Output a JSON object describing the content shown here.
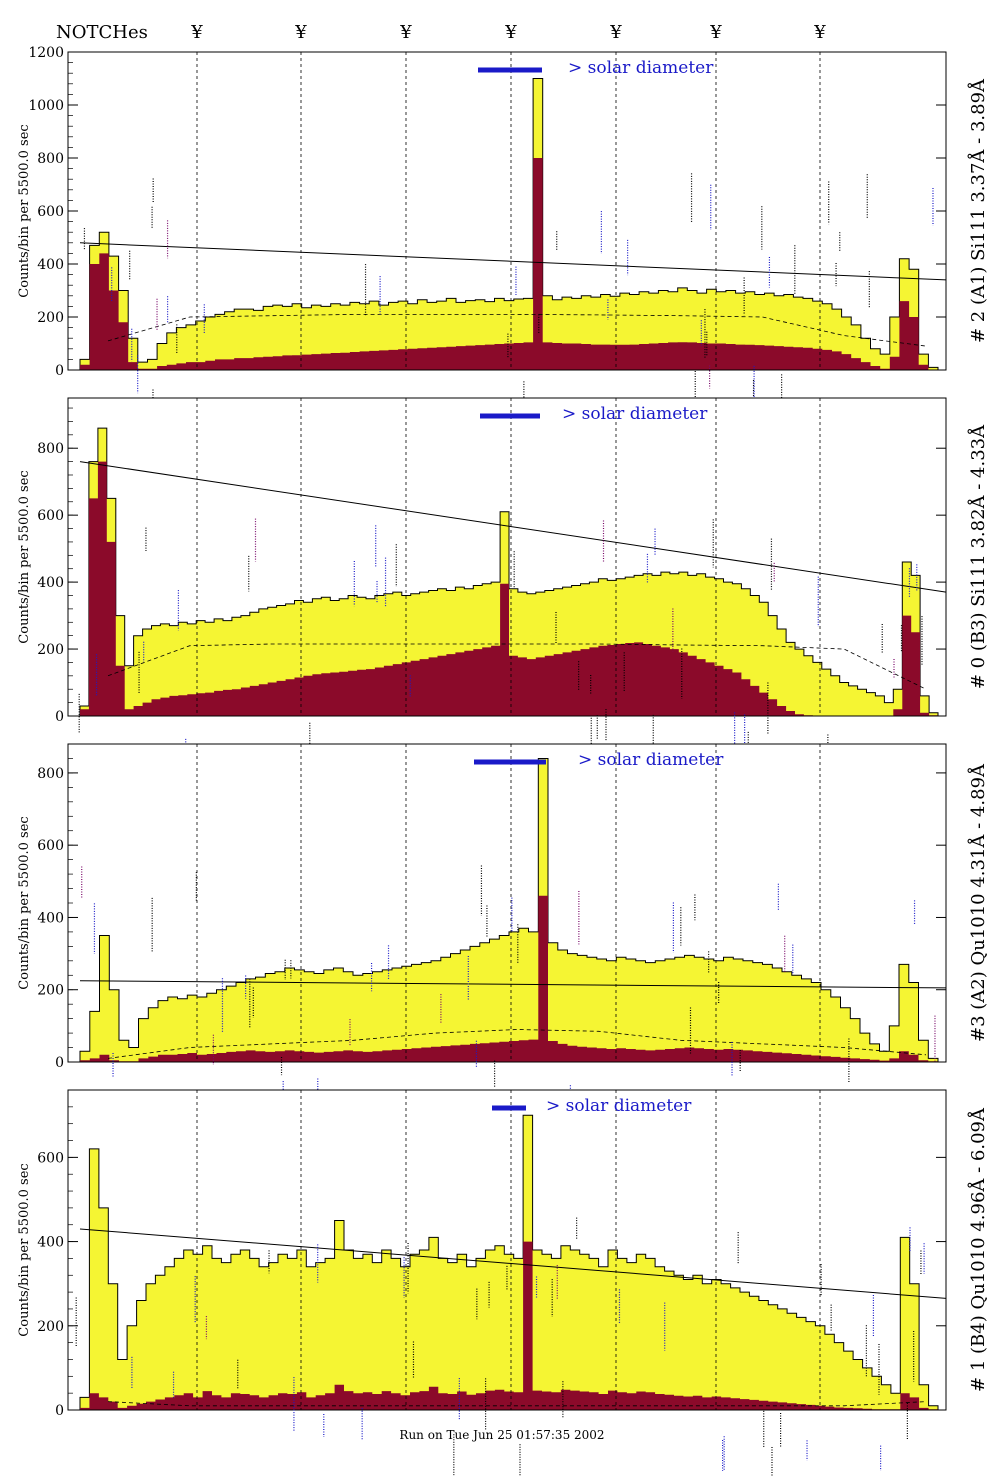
{
  "header": {
    "notches_label": "NOTCHes",
    "notch_symbol": "¥"
  },
  "footer": {
    "run_text": "Run on Tue Jun 25 01:57:35 2002"
  },
  "solar_label": "> solar diameter",
  "colors": {
    "fill_light": "#f5f533",
    "fill_dark": "#8b0a2a",
    "annotation_blue": "#1a1ac8",
    "annotation_purple": "#7a0a6a"
  },
  "chart_data": [
    {
      "type": "bar",
      "title": "# 2 (A1) Si111  3.37Å - 3.89Å",
      "ylabel": "Counts/bin per   5500.0 sec",
      "ylim": [
        0,
        1200
      ],
      "yticks": [
        0,
        200,
        400,
        600,
        800,
        1000,
        1200
      ],
      "notch_x": [
        0.16,
        0.31,
        0.45,
        0.6,
        0.74,
        0.89,
        1.03
      ],
      "series": [
        {
          "name": "total",
          "values": [
            40,
            470,
            520,
            430,
            300,
            120,
            30,
            40,
            100,
            140,
            160,
            170,
            185,
            200,
            210,
            220,
            230,
            230,
            225,
            240,
            245,
            240,
            250,
            235,
            245,
            240,
            250,
            245,
            255,
            250,
            260,
            245,
            255,
            260,
            250,
            265,
            255,
            260,
            270,
            255,
            262,
            265,
            258,
            270,
            262,
            268,
            270,
            1100,
            280,
            265,
            275,
            270,
            280,
            275,
            285,
            278,
            290,
            285,
            295,
            290,
            300,
            295,
            310,
            300,
            290,
            305,
            295,
            300,
            290,
            295,
            285,
            290,
            280,
            285,
            275,
            270,
            260,
            250,
            230,
            200,
            170,
            120,
            80,
            60,
            200,
            420,
            380,
            60,
            10
          ]
        },
        {
          "name": "signal",
          "values": [
            20,
            400,
            440,
            300,
            180,
            30,
            5,
            5,
            15,
            20,
            25,
            30,
            30,
            35,
            40,
            40,
            45,
            45,
            48,
            50,
            52,
            55,
            56,
            58,
            60,
            62,
            64,
            65,
            68,
            70,
            72,
            74,
            76,
            78,
            80,
            82,
            84,
            86,
            88,
            90,
            92,
            94,
            96,
            98,
            100,
            102,
            104,
            800,
            104,
            102,
            100,
            100,
            98,
            96,
            96,
            95,
            95,
            96,
            98,
            100,
            102,
            104,
            105,
            104,
            102,
            100,
            100,
            98,
            96,
            95,
            94,
            92,
            90,
            88,
            86,
            84,
            80,
            76,
            70,
            60,
            45,
            30,
            15,
            5,
            50,
            260,
            200,
            20,
            2
          ]
        }
      ],
      "fit_line": [
        480,
        340
      ],
      "bg_curve": [
        110,
        200,
        205,
        210,
        210,
        210,
        208,
        205,
        200,
        130,
        90
      ]
    },
    {
      "type": "bar",
      "title": "# 0 (B3) Si111  3.82Å - 4.33Å",
      "ylabel": "Counts/bin per   5500.0 sec",
      "ylim": [
        0,
        950
      ],
      "yticks": [
        0,
        200,
        400,
        600,
        800
      ],
      "notch_x": [
        0.16,
        0.31,
        0.45,
        0.6,
        0.74,
        0.89,
        1.03
      ],
      "series": [
        {
          "name": "total",
          "values": [
            30,
            760,
            860,
            650,
            300,
            150,
            240,
            260,
            270,
            275,
            270,
            280,
            275,
            285,
            280,
            290,
            285,
            295,
            300,
            310,
            320,
            325,
            330,
            335,
            345,
            340,
            350,
            355,
            345,
            350,
            360,
            355,
            350,
            360,
            365,
            370,
            360,
            365,
            370,
            375,
            380,
            375,
            385,
            380,
            390,
            395,
            400,
            610,
            380,
            370,
            365,
            370,
            375,
            380,
            385,
            390,
            395,
            400,
            410,
            405,
            410,
            415,
            420,
            425,
            420,
            430,
            425,
            430,
            420,
            425,
            415,
            410,
            400,
            395,
            380,
            360,
            340,
            300,
            260,
            220,
            200,
            180,
            160,
            140,
            120,
            100,
            90,
            80,
            70,
            60,
            40,
            80,
            460,
            420,
            60,
            10
          ]
        },
        {
          "name": "signal",
          "values": [
            20,
            650,
            760,
            520,
            150,
            20,
            30,
            40,
            50,
            55,
            60,
            62,
            65,
            68,
            70,
            75,
            78,
            80,
            85,
            90,
            95,
            100,
            105,
            110,
            115,
            120,
            125,
            128,
            130,
            132,
            135,
            138,
            140,
            145,
            150,
            155,
            160,
            165,
            170,
            175,
            180,
            185,
            190,
            195,
            200,
            205,
            210,
            395,
            180,
            175,
            170,
            175,
            180,
            185,
            190,
            195,
            200,
            205,
            210,
            212,
            215,
            218,
            220,
            215,
            210,
            205,
            200,
            190,
            180,
            170,
            160,
            150,
            140,
            130,
            110,
            90,
            70,
            50,
            30,
            15,
            5,
            2,
            0,
            0,
            0,
            0,
            0,
            0,
            0,
            0,
            0,
            20,
            300,
            250,
            10,
            2
          ]
        }
      ],
      "fit_line": [
        760,
        370
      ],
      "bg_curve": [
        120,
        210,
        215,
        215,
        215,
        215,
        215,
        212,
        210,
        200,
        80
      ]
    },
    {
      "type": "bar",
      "title": "#3 (A2) Qu1010  4.31Å - 4.89Å",
      "ylabel": "Counts/bin per   5500.0 sec",
      "ylim": [
        0,
        880
      ],
      "yticks": [
        0,
        200,
        400,
        600,
        800
      ],
      "notch_x": [
        0.16,
        0.31,
        0.45,
        0.6,
        0.74,
        0.89,
        1.03
      ],
      "series": [
        {
          "name": "total",
          "values": [
            30,
            140,
            350,
            200,
            60,
            40,
            120,
            150,
            170,
            180,
            175,
            185,
            180,
            190,
            200,
            210,
            220,
            230,
            235,
            245,
            250,
            260,
            255,
            250,
            245,
            255,
            260,
            250,
            240,
            245,
            250,
            255,
            260,
            265,
            270,
            275,
            280,
            290,
            300,
            310,
            320,
            330,
            340,
            350,
            360,
            370,
            360,
            840,
            330,
            310,
            300,
            295,
            290,
            285,
            280,
            290,
            285,
            280,
            275,
            280,
            285,
            290,
            295,
            290,
            285,
            280,
            290,
            285,
            280,
            275,
            270,
            260,
            250,
            240,
            230,
            220,
            200,
            180,
            150,
            120,
            80,
            50,
            30,
            100,
            270,
            220,
            60,
            10
          ]
        },
        {
          "name": "signal",
          "values": [
            5,
            10,
            20,
            5,
            2,
            2,
            10,
            15,
            20,
            20,
            22,
            25,
            20,
            22,
            25,
            28,
            30,
            32,
            30,
            28,
            30,
            32,
            30,
            28,
            26,
            28,
            30,
            32,
            30,
            28,
            30,
            32,
            34,
            36,
            38,
            40,
            42,
            44,
            46,
            48,
            50,
            52,
            54,
            56,
            58,
            60,
            62,
            460,
            58,
            50,
            45,
            42,
            40,
            38,
            36,
            38,
            36,
            34,
            32,
            34,
            36,
            38,
            40,
            38,
            36,
            34,
            36,
            34,
            32,
            30,
            28,
            26,
            24,
            22,
            20,
            18,
            16,
            14,
            12,
            10,
            8,
            6,
            4,
            10,
            30,
            20,
            5,
            2
          ]
        }
      ],
      "fit_line": [
        225,
        205
      ],
      "bg_curve": [
        10,
        40,
        50,
        60,
        80,
        90,
        85,
        60,
        50,
        40,
        20
      ]
    },
    {
      "type": "bar",
      "title": "# 1 (B4) Qu1010 4.96Å - 6.09Å",
      "ylabel": "Counts/bin per   5500.0 sec",
      "ylim": [
        0,
        760
      ],
      "yticks": [
        0,
        200,
        400,
        600
      ],
      "notch_x": [
        0.16,
        0.31,
        0.45,
        0.6,
        0.74,
        0.89,
        1.03
      ],
      "series": [
        {
          "name": "total",
          "values": [
            30,
            620,
            480,
            300,
            120,
            200,
            260,
            300,
            320,
            340,
            360,
            380,
            370,
            390,
            360,
            350,
            370,
            380,
            360,
            340,
            350,
            370,
            360,
            380,
            340,
            350,
            360,
            450,
            380,
            360,
            370,
            350,
            380,
            360,
            340,
            370,
            380,
            410,
            360,
            350,
            370,
            340,
            360,
            380,
            390,
            370,
            360,
            700,
            380,
            370,
            360,
            390,
            380,
            370,
            360,
            340,
            380,
            360,
            350,
            370,
            360,
            340,
            330,
            320,
            310,
            320,
            300,
            310,
            300,
            290,
            280,
            270,
            260,
            250,
            240,
            230,
            220,
            210,
            200,
            180,
            160,
            140,
            120,
            100,
            80,
            60,
            40,
            410,
            300,
            60,
            10
          ]
        },
        {
          "name": "signal",
          "values": [
            5,
            40,
            30,
            20,
            5,
            10,
            15,
            20,
            25,
            30,
            35,
            40,
            30,
            45,
            35,
            30,
            40,
            38,
            35,
            30,
            35,
            40,
            38,
            42,
            30,
            35,
            40,
            60,
            45,
            40,
            42,
            38,
            45,
            40,
            35,
            42,
            45,
            55,
            40,
            38,
            44,
            36,
            40,
            46,
            48,
            44,
            42,
            400,
            46,
            44,
            42,
            48,
            46,
            44,
            42,
            38,
            46,
            42,
            40,
            44,
            42,
            38,
            36,
            34,
            32,
            34,
            30,
            32,
            30,
            28,
            26,
            24,
            22,
            20,
            18,
            16,
            14,
            12,
            10,
            8,
            6,
            5,
            4,
            3,
            2,
            2,
            2,
            40,
            30,
            5,
            2
          ]
        }
      ],
      "fit_line": [
        430,
        265
      ],
      "bg_curve": [
        20,
        10,
        10,
        10,
        10,
        10,
        10,
        10,
        10,
        10,
        20
      ]
    }
  ]
}
